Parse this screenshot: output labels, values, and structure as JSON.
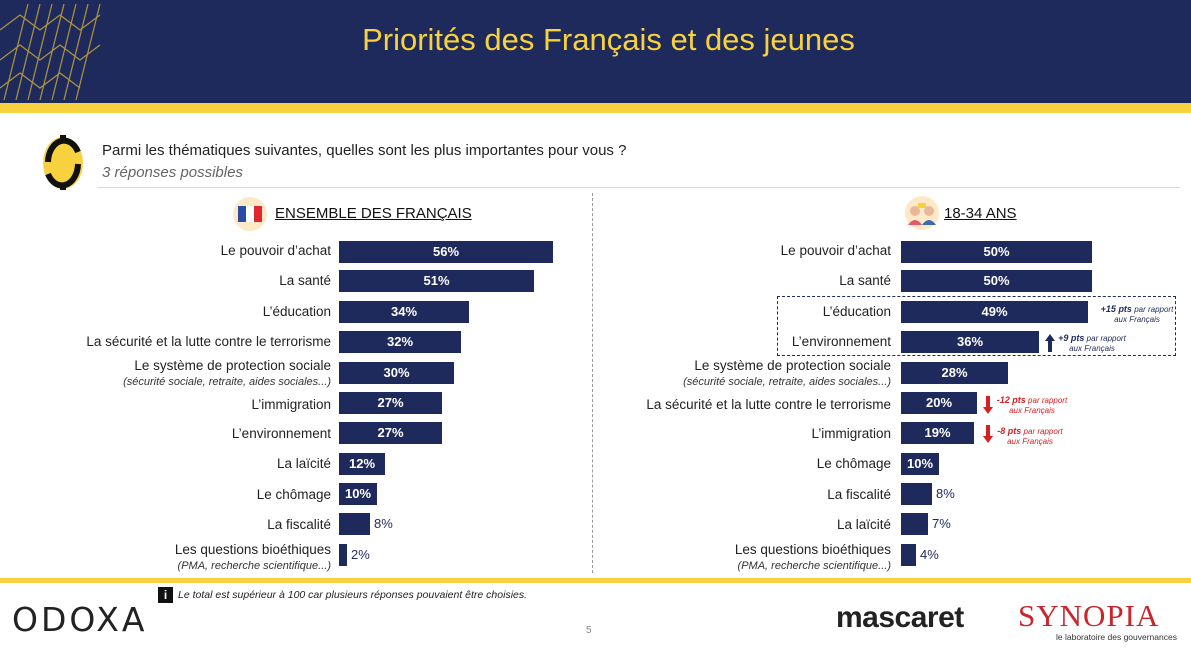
{
  "title": "Priorités des Français et des jeunes",
  "question": "Parmi les thématiques suivantes, quelles sont les plus importantes pour vous ?",
  "subquestion": "3 réponses possibles",
  "left_panel_title": "ENSEMBLE DES FRANÇAIS",
  "right_panel_title": "18-34 ANS",
  "left_labels": [
    {
      "main": "Le pouvoir d’achat",
      "sub": ""
    },
    {
      "main": "La santé",
      "sub": ""
    },
    {
      "main": "L’éducation",
      "sub": ""
    },
    {
      "main": "La sécurité et la lutte contre le terrorisme",
      "sub": ""
    },
    {
      "main": "Le système de protection sociale",
      "sub": "(sécurité sociale, retraite, aides sociales...)"
    },
    {
      "main": "L’immigration",
      "sub": ""
    },
    {
      "main": "L’environnement",
      "sub": ""
    },
    {
      "main": "La laïcité",
      "sub": ""
    },
    {
      "main": "Le chômage",
      "sub": ""
    },
    {
      "main": "La fiscalité",
      "sub": ""
    },
    {
      "main": "Les questions bioéthiques",
      "sub": "(PMA, recherche scientifique...)"
    }
  ],
  "left_value_labels": [
    "56%",
    "51%",
    "34%",
    "32%",
    "30%",
    "27%",
    "27%",
    "12%",
    "10%",
    "8%",
    "2%"
  ],
  "right_labels": [
    {
      "main": "Le pouvoir d’achat",
      "sub": ""
    },
    {
      "main": "La santé",
      "sub": ""
    },
    {
      "main": "L’éducation",
      "sub": ""
    },
    {
      "main": "L’environnement",
      "sub": ""
    },
    {
      "main": "Le système de protection sociale",
      "sub": "(sécurité sociale, retraite, aides sociales...)"
    },
    {
      "main": "La sécurité et la lutte contre le terrorisme",
      "sub": ""
    },
    {
      "main": "L’immigration",
      "sub": ""
    },
    {
      "main": "Le chômage",
      "sub": ""
    },
    {
      "main": "La fiscalité",
      "sub": ""
    },
    {
      "main": "La laïcité",
      "sub": ""
    },
    {
      "main": "Les questions bioéthiques",
      "sub": "(PMA, recherche scientifique...)"
    }
  ],
  "right_value_labels": [
    "50%",
    "50%",
    "49%",
    "36%",
    "28%",
    "20%",
    "19%",
    "10%",
    "8%",
    "7%",
    "4%"
  ],
  "annotations": [
    {
      "pts": "+15 pts",
      "text1": "par rapport",
      "text2": "aux Français"
    },
    {
      "pts": "+9 pts",
      "text1": "par rapport",
      "text2": "aux Français"
    },
    {
      "pts": "-12 pts",
      "text1": "par rapport",
      "text2": "aux Français"
    },
    {
      "pts": "-8 pts",
      "text1": "par rapport",
      "text2": "aux Français"
    }
  ],
  "footnote_icon": "i",
  "footnote": "Le total est supérieur à 100 car plusieurs réponses pouvaient être choisies.",
  "page_number": "5",
  "logos": {
    "odoxa": "ODOXA",
    "mascaret": "mascaret",
    "synopia": "SYNOPIA",
    "synopia_tagline": "le laboratoire des gouvernances"
  },
  "colors": {
    "navy": "#1f2a5c",
    "yellow": "#f7d23e",
    "red": "#d81e1e"
  },
  "icons": {
    "question": "odoxa-question-icon",
    "left_panel": "french-flag-icon",
    "right_panel": "young-people-icon",
    "up": "arrow-up-icon",
    "down": "arrow-down-icon",
    "info": "info-icon"
  },
  "chart_data": [
    {
      "type": "bar",
      "orientation": "horizontal",
      "title": "ENSEMBLE DES FRANÇAIS",
      "categories": [
        "Le pouvoir d’achat",
        "La santé",
        "L’éducation",
        "La sécurité et la lutte contre le terrorisme",
        "Le système de protection sociale (sécurité sociale, retraite, aides sociales...)",
        "L’immigration",
        "L’environnement",
        "La laïcité",
        "Le chômage",
        "La fiscalité",
        "Les questions bioéthiques (PMA, recherche scientifique...)"
      ],
      "values": [
        56,
        51,
        34,
        32,
        30,
        27,
        27,
        12,
        10,
        8,
        2
      ],
      "unit": "%"
    },
    {
      "type": "bar",
      "orientation": "horizontal",
      "title": "18-34 ANS",
      "categories": [
        "Le pouvoir d’achat",
        "La santé",
        "L’éducation",
        "L’environnement",
        "Le système de protection sociale (sécurité sociale, retraite, aides sociales...)",
        "La sécurité et la lutte contre le terrorisme",
        "L’immigration",
        "Le chômage",
        "La fiscalité",
        "La laïcité",
        "Les questions bioéthiques (PMA, recherche scientifique...)"
      ],
      "values": [
        50,
        50,
        49,
        36,
        28,
        20,
        19,
        10,
        8,
        7,
        4
      ],
      "unit": "%",
      "differences": [
        {
          "category": "L’éducation",
          "delta": 15
        },
        {
          "category": "L’environnement",
          "delta": 9
        },
        {
          "category": "La sécurité et la lutte contre le terrorisme",
          "delta": -12
        },
        {
          "category": "L’immigration",
          "delta": -8
        }
      ]
    }
  ]
}
